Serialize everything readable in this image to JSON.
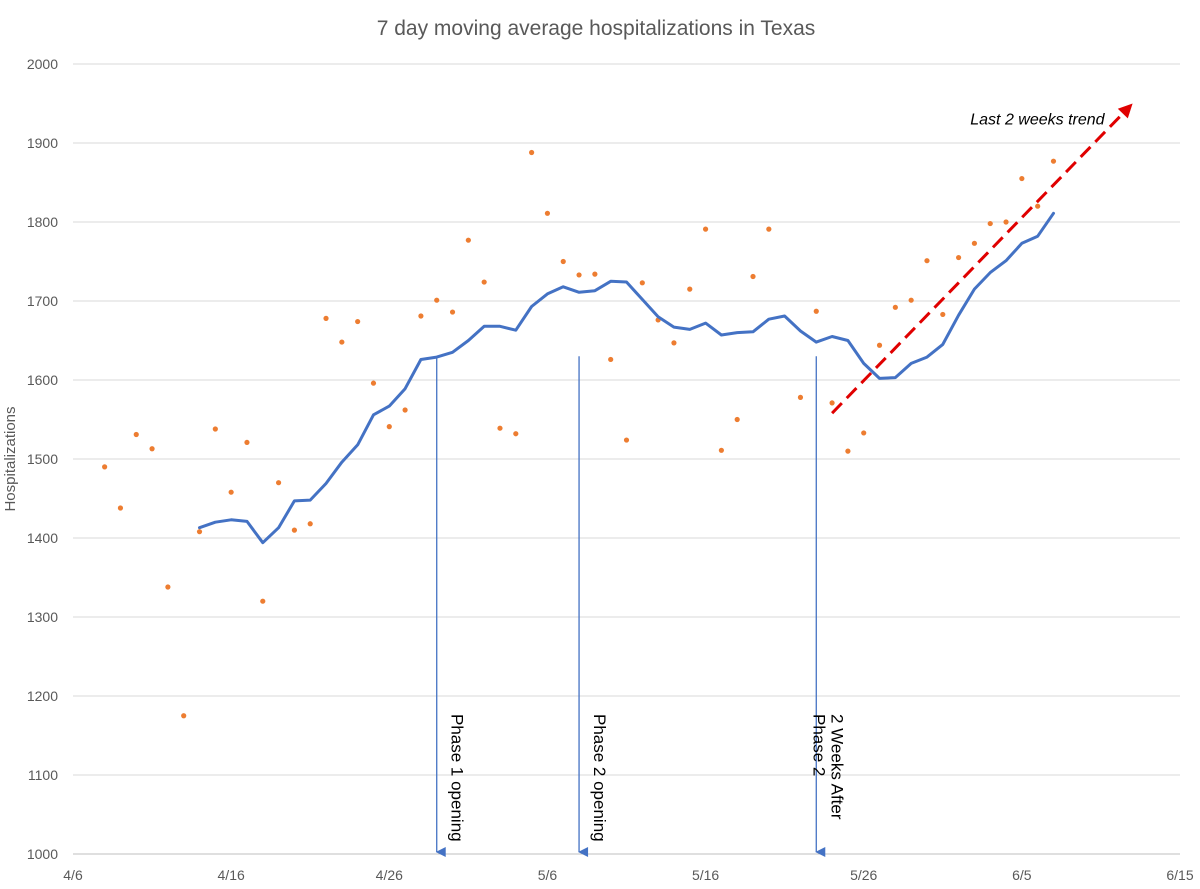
{
  "chart_data": {
    "type": "line",
    "title": "7 day moving average hospitalizations in Texas",
    "ylabel": "Hospitalizations",
    "xlabel": "",
    "ylim": [
      1000,
      2000
    ],
    "yticks": [
      1000,
      1100,
      1200,
      1300,
      1400,
      1500,
      1600,
      1700,
      1800,
      1900,
      2000
    ],
    "xlim": [
      "2020-04-06",
      "2020-06-15"
    ],
    "xticks": [
      {
        "date": "2020-04-06",
        "label": "4/6"
      },
      {
        "date": "2020-04-16",
        "label": "4/16"
      },
      {
        "date": "2020-04-26",
        "label": "4/26"
      },
      {
        "date": "2020-05-06",
        "label": "5/6"
      },
      {
        "date": "2020-05-16",
        "label": "5/16"
      },
      {
        "date": "2020-05-26",
        "label": "5/26"
      },
      {
        "date": "2020-06-05",
        "label": "6/5"
      },
      {
        "date": "2020-06-15",
        "label": "6/15"
      }
    ],
    "grid": true,
    "series": [
      {
        "kind": "scatter",
        "color": "#ED7D31",
        "points": [
          [
            "2020-04-08",
            1490
          ],
          [
            "2020-04-09",
            1438
          ],
          [
            "2020-04-10",
            1531
          ],
          [
            "2020-04-11",
            1513
          ],
          [
            "2020-04-12",
            1338
          ],
          [
            "2020-04-13",
            1175
          ],
          [
            "2020-04-14",
            1408
          ],
          [
            "2020-04-15",
            1538
          ],
          [
            "2020-04-16",
            1458
          ],
          [
            "2020-04-17",
            1521
          ],
          [
            "2020-04-18",
            1320
          ],
          [
            "2020-04-19",
            1470
          ],
          [
            "2020-04-20",
            1410
          ],
          [
            "2020-04-21",
            1418
          ],
          [
            "2020-04-22",
            1678
          ],
          [
            "2020-04-23",
            1648
          ],
          [
            "2020-04-24",
            1674
          ],
          [
            "2020-04-25",
            1596
          ],
          [
            "2020-04-26",
            1541
          ],
          [
            "2020-04-27",
            1562
          ],
          [
            "2020-04-28",
            1681
          ],
          [
            "2020-04-29",
            1701
          ],
          [
            "2020-04-30",
            1686
          ],
          [
            "2020-05-01",
            1777
          ],
          [
            "2020-05-02",
            1724
          ],
          [
            "2020-05-03",
            1539
          ],
          [
            "2020-05-04",
            1532
          ],
          [
            "2020-05-05",
            1888
          ],
          [
            "2020-05-06",
            1811
          ],
          [
            "2020-05-07",
            1750
          ],
          [
            "2020-05-08",
            1733
          ],
          [
            "2020-05-09",
            1734
          ],
          [
            "2020-05-10",
            1626
          ],
          [
            "2020-05-11",
            1524
          ],
          [
            "2020-05-12",
            1723
          ],
          [
            "2020-05-13",
            1676
          ],
          [
            "2020-05-14",
            1647
          ],
          [
            "2020-05-15",
            1715
          ],
          [
            "2020-05-16",
            1791
          ],
          [
            "2020-05-17",
            1511
          ],
          [
            "2020-05-18",
            1550
          ],
          [
            "2020-05-19",
            1731
          ],
          [
            "2020-05-20",
            1791
          ],
          [
            "2020-05-22",
            1578
          ],
          [
            "2020-05-23",
            1687
          ],
          [
            "2020-05-24",
            1571
          ],
          [
            "2020-05-25",
            1510
          ],
          [
            "2020-05-26",
            1533
          ],
          [
            "2020-05-27",
            1644
          ],
          [
            "2020-05-28",
            1692
          ],
          [
            "2020-05-29",
            1701
          ],
          [
            "2020-05-30",
            1751
          ],
          [
            "2020-05-31",
            1683
          ],
          [
            "2020-06-01",
            1755
          ],
          [
            "2020-06-02",
            1773
          ],
          [
            "2020-06-03",
            1798
          ],
          [
            "2020-06-04",
            1800
          ],
          [
            "2020-06-05",
            1855
          ],
          [
            "2020-06-06",
            1820
          ],
          [
            "2020-06-07",
            1877
          ]
        ]
      },
      {
        "kind": "line",
        "color": "#4472C4",
        "points": [
          [
            "2020-04-14",
            1413
          ],
          [
            "2020-04-15",
            1420
          ],
          [
            "2020-04-16",
            1423
          ],
          [
            "2020-04-17",
            1421
          ],
          [
            "2020-04-18",
            1394
          ],
          [
            "2020-04-19",
            1413
          ],
          [
            "2020-04-20",
            1447
          ],
          [
            "2020-04-21",
            1448
          ],
          [
            "2020-04-22",
            1469
          ],
          [
            "2020-04-23",
            1496
          ],
          [
            "2020-04-24",
            1518
          ],
          [
            "2020-04-25",
            1556
          ],
          [
            "2020-04-26",
            1567
          ],
          [
            "2020-04-27",
            1589
          ],
          [
            "2020-04-28",
            1626
          ],
          [
            "2020-04-29",
            1629
          ],
          [
            "2020-04-30",
            1635
          ],
          [
            "2020-05-01",
            1650
          ],
          [
            "2020-05-02",
            1668
          ],
          [
            "2020-05-03",
            1668
          ],
          [
            "2020-05-04",
            1663
          ],
          [
            "2020-05-05",
            1693
          ],
          [
            "2020-05-06",
            1709
          ],
          [
            "2020-05-07",
            1718
          ],
          [
            "2020-05-08",
            1711
          ],
          [
            "2020-05-09",
            1713
          ],
          [
            "2020-05-10",
            1725
          ],
          [
            "2020-05-11",
            1724
          ],
          [
            "2020-05-12",
            1702
          ],
          [
            "2020-05-13",
            1680
          ],
          [
            "2020-05-14",
            1667
          ],
          [
            "2020-05-15",
            1664
          ],
          [
            "2020-05-16",
            1672
          ],
          [
            "2020-05-17",
            1657
          ],
          [
            "2020-05-18",
            1660
          ],
          [
            "2020-05-19",
            1661
          ],
          [
            "2020-05-20",
            1677
          ],
          [
            "2020-05-21",
            1681
          ],
          [
            "2020-05-22",
            1662
          ],
          [
            "2020-05-23",
            1648
          ],
          [
            "2020-05-24",
            1655
          ],
          [
            "2020-05-25",
            1650
          ],
          [
            "2020-05-26",
            1621
          ],
          [
            "2020-05-27",
            1602
          ],
          [
            "2020-05-28",
            1603
          ],
          [
            "2020-05-29",
            1621
          ],
          [
            "2020-05-30",
            1629
          ],
          [
            "2020-05-31",
            1645
          ],
          [
            "2020-06-01",
            1682
          ],
          [
            "2020-06-02",
            1715
          ],
          [
            "2020-06-03",
            1736
          ],
          [
            "2020-06-04",
            1751
          ],
          [
            "2020-06-05",
            1773
          ],
          [
            "2020-06-06",
            1782
          ],
          [
            "2020-06-07",
            1811
          ]
        ]
      }
    ],
    "annotations": [
      {
        "text": "Phase 1 opening",
        "date": "2020-04-29"
      },
      {
        "text": "Phase 2 opening",
        "date": "2020-05-08"
      },
      {
        "text": "2 Weeks After",
        "text2": "Phase 2",
        "date": "2020-05-23"
      }
    ],
    "trend": {
      "label": "Last 2 weeks trend",
      "from": [
        "2020-05-24",
        1558
      ],
      "to": [
        "2020-06-12",
        1950
      ],
      "color": "#E00000"
    }
  }
}
